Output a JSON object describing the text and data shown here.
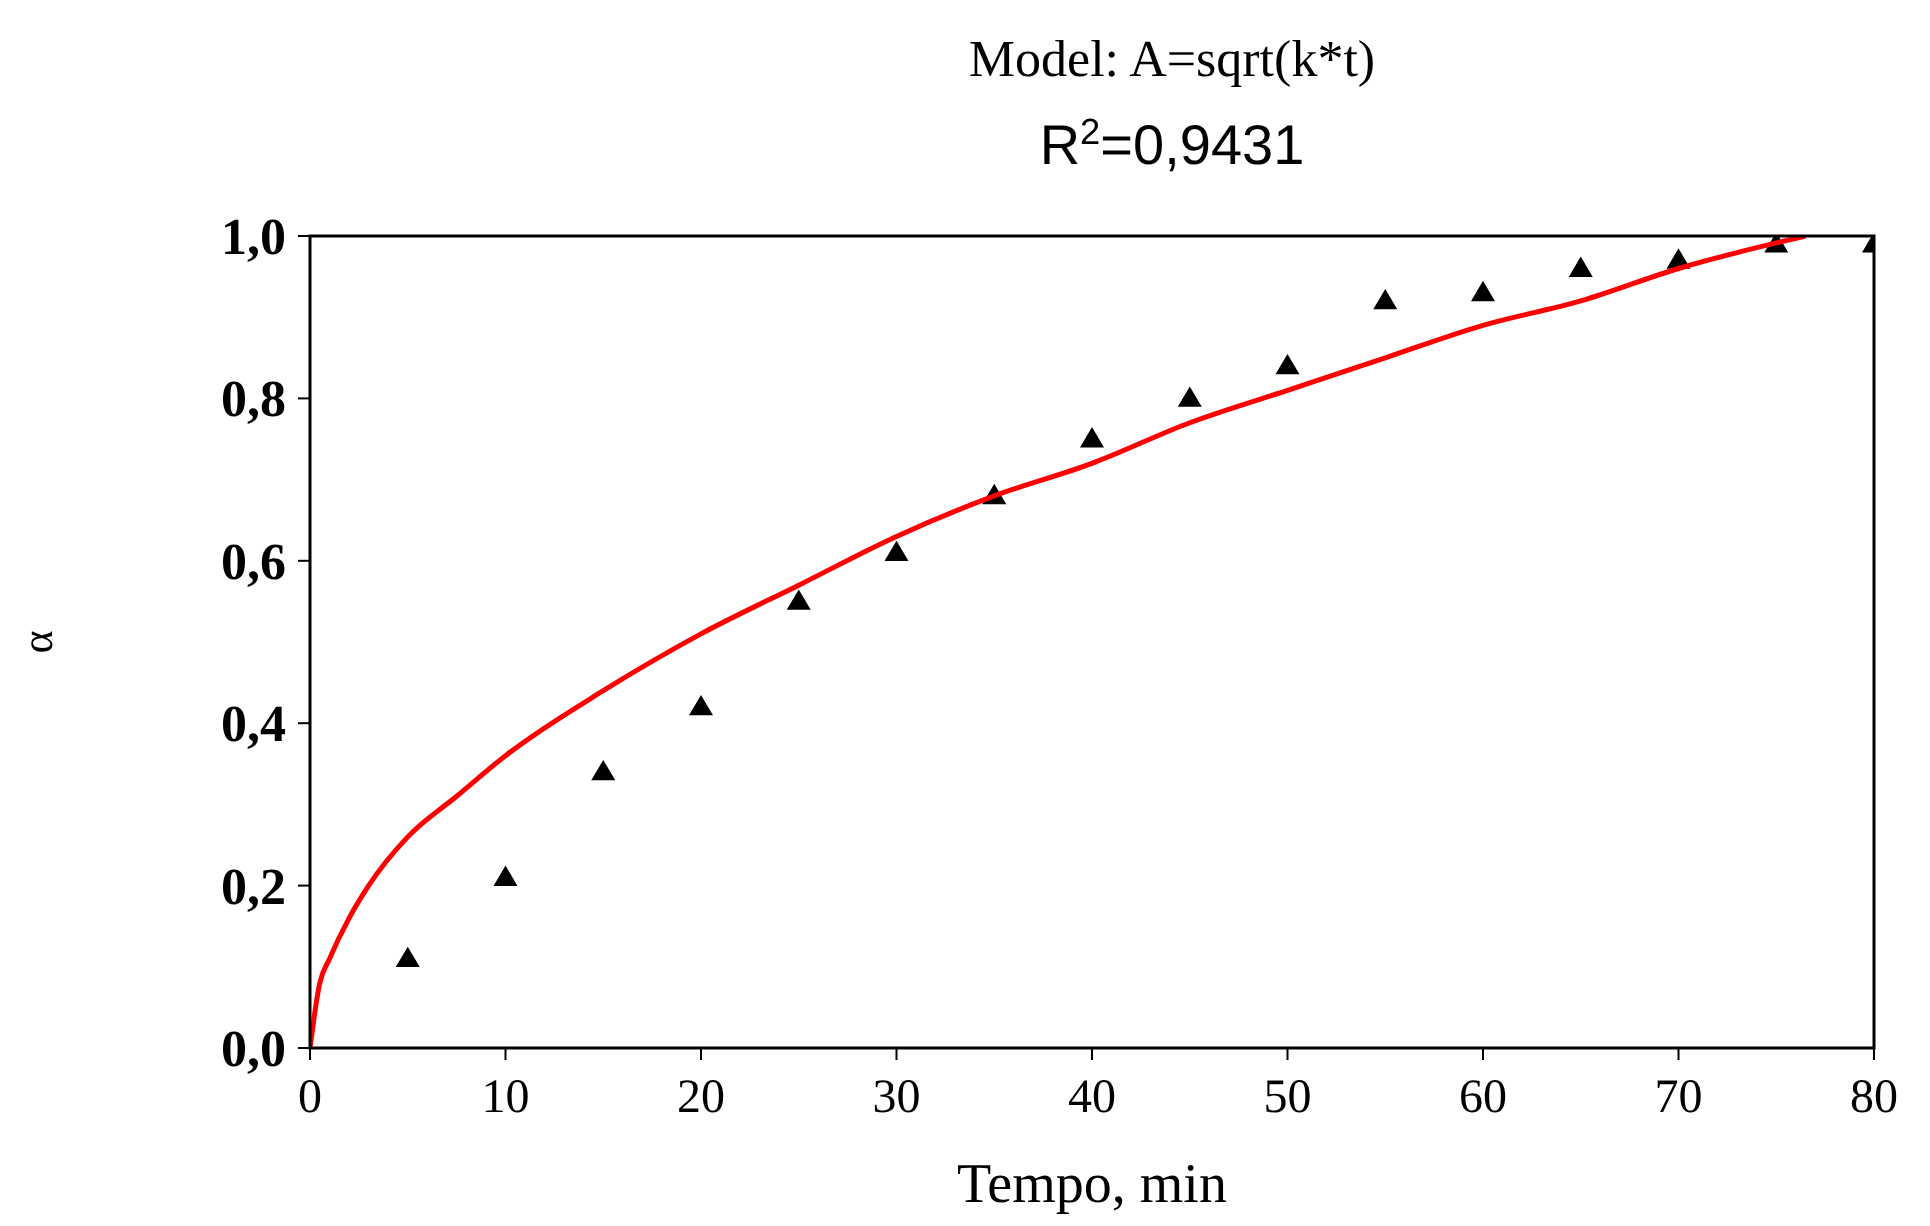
{
  "chart_data": {
    "type": "scatter",
    "title": "Model: A=sqrt(k*t)",
    "subtitle": "R$^{2}$=0,9431",
    "xlabel": "Tempo, min",
    "ylabel": "α",
    "xlim": [
      0,
      80
    ],
    "xticks": [
      0,
      10,
      20,
      30,
      40,
      50,
      60,
      70,
      80
    ],
    "ylim": [
      0,
      1
    ],
    "yticks": [
      {
        "value": 0,
        "label": "0,0"
      },
      {
        "value": 0.2,
        "label": "0,2"
      },
      {
        "value": 0.4,
        "label": "0,4"
      },
      {
        "value": 0.6,
        "label": "0,6"
      },
      {
        "value": 0.8,
        "label": "0,8"
      },
      {
        "value": 1,
        "label": "1,0"
      }
    ],
    "grid": false,
    "series": [
      {
        "marker": "triangle",
        "color": "#000000",
        "x": [
          5,
          10,
          15,
          20,
          25,
          30,
          35,
          40,
          45,
          50,
          55,
          60,
          65,
          70,
          75,
          80
        ],
        "values": [
          0.11,
          0.21,
          0.34,
          0.42,
          0.55,
          0.61,
          0.68,
          0.75,
          0.8,
          0.84,
          0.92,
          0.93,
          0.96,
          0.97,
          0.99,
          0.99
        ]
      },
      {
        "type": "line",
        "marker": "none",
        "line_style": "solid",
        "color": "#ff0000",
        "x": [
          0,
          0.5,
          1,
          2,
          3,
          5,
          7.5,
          10,
          15,
          20,
          25,
          30,
          35,
          40,
          45,
          50,
          55,
          60,
          65,
          70,
          76.5
        ],
        "values": [
          0,
          0.08,
          0.11,
          0.16,
          0.2,
          0.26,
          0.31,
          0.36,
          0.44,
          0.51,
          0.57,
          0.63,
          0.68,
          0.72,
          0.77,
          0.81,
          0.85,
          0.89,
          0.92,
          0.96,
          1.0
        ]
      }
    ]
  }
}
